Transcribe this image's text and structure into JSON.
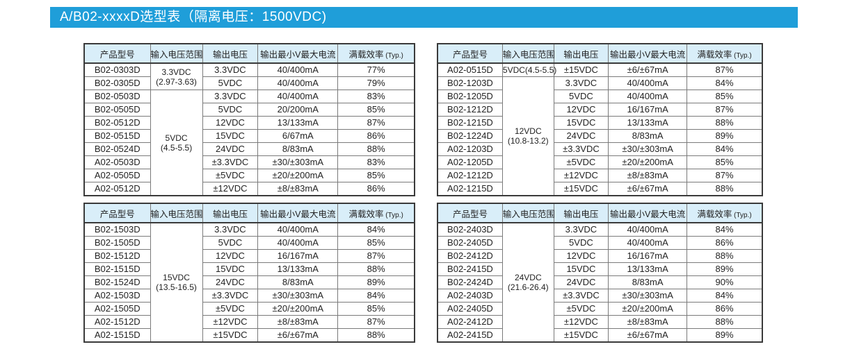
{
  "banner": {
    "title": "A/B02-xxxxD选型表（隔离电压：1500VDC)",
    "background": "#1f9ed9",
    "text_color": "#ffffff"
  },
  "colors": {
    "header_bg": "#d9eef9",
    "outer_border": "#3a3a3a",
    "inner_border": "#7a7a7a",
    "text": "#222222"
  },
  "column_headers": [
    {
      "label": "产品型号"
    },
    {
      "label": "输入电压范围"
    },
    {
      "label": "输出电压"
    },
    {
      "label": "输出最小V最大电流"
    },
    {
      "label": "满载效率",
      "small": "(Typ.)"
    }
  ],
  "tables": [
    {
      "position": "top-left",
      "rows": [
        {
          "model": "B02-0303D",
          "input": {
            "rowspan": 2,
            "lines": [
              "3.3VDC",
              "(2.97-3.63)"
            ]
          },
          "output": "3.3VDC",
          "current": "40/400mA",
          "efficiency": "77%"
        },
        {
          "model": "B02-0305D",
          "input": null,
          "output": "5VDC",
          "current": "40/400mA",
          "efficiency": "79%"
        },
        {
          "model": "B02-0503D",
          "input": {
            "rowspan": 8,
            "lines": [
              "5VDC",
              "(4.5-5.5)"
            ]
          },
          "output": "3.3VDC",
          "current": "40/400mA",
          "efficiency": "83%"
        },
        {
          "model": "B02-0505D",
          "input": null,
          "output": "5VDC",
          "current": "20/200mA",
          "efficiency": "85%"
        },
        {
          "model": "B02-0512D",
          "input": null,
          "output": "12VDC",
          "current": "13/133mA",
          "efficiency": "87%"
        },
        {
          "model": "B02-0515D",
          "input": null,
          "output": "15VDC",
          "current": "6/67mA",
          "efficiency": "86%"
        },
        {
          "model": "B02-0524D",
          "input": null,
          "output": "24VDC",
          "current": "8/83mA",
          "efficiency": "88%"
        },
        {
          "model": "A02-0503D",
          "input": null,
          "output": "±3.3VDC",
          "current": "±30/±303mA",
          "efficiency": "83%"
        },
        {
          "model": "A02-0505D",
          "input": null,
          "output": "±5VDC",
          "current": "±20/±200mA",
          "efficiency": "85%"
        },
        {
          "model": "A02-0512D",
          "input": null,
          "output": "±12VDC",
          "current": "±8/±83mA",
          "efficiency": "86%"
        }
      ]
    },
    {
      "position": "top-right",
      "rows": [
        {
          "model": "A02-0515D",
          "input": {
            "rowspan": 1,
            "lines": [
              "5VDC(4.5-5.5)"
            ]
          },
          "output": "±15VDC",
          "current": "±6/±67mA",
          "efficiency": "87%"
        },
        {
          "model": "B02-1203D",
          "input": {
            "rowspan": 9,
            "lines": [
              "12VDC",
              "(10.8-13.2)"
            ]
          },
          "output": "3.3VDC",
          "current": "40/400mA",
          "efficiency": "84%"
        },
        {
          "model": "B02-1205D",
          "input": null,
          "output": "5VDC",
          "current": "40/400mA",
          "efficiency": "85%"
        },
        {
          "model": "B02-1212D",
          "input": null,
          "output": "12VDC",
          "current": "16/167mA",
          "efficiency": "87%"
        },
        {
          "model": "B02-1215D",
          "input": null,
          "output": "15VDC",
          "current": "13/133mA",
          "efficiency": "88%"
        },
        {
          "model": "B02-1224D",
          "input": null,
          "output": "24VDC",
          "current": "8/83mA",
          "efficiency": "89%"
        },
        {
          "model": "A02-1203D",
          "input": null,
          "output": "±3.3VDC",
          "current": "±30/±303mA",
          "efficiency": "84%"
        },
        {
          "model": "A02-1205D",
          "input": null,
          "output": "±5VDC",
          "current": "±20/±200mA",
          "efficiency": "85%"
        },
        {
          "model": "A02-1212D",
          "input": null,
          "output": "±12VDC",
          "current": "±8/±83mA",
          "efficiency": "87%"
        },
        {
          "model": "A02-1215D",
          "input": null,
          "output": "±15VDC",
          "current": "±6/±67mA",
          "efficiency": "88%"
        }
      ]
    },
    {
      "position": "bottom-left",
      "rows": [
        {
          "model": "B02-1503D",
          "input": {
            "rowspan": 9,
            "lines": [
              "15VDC",
              "(13.5-16.5)"
            ]
          },
          "output": "3.3VDC",
          "current": "40/400mA",
          "efficiency": "84%"
        },
        {
          "model": "B02-1505D",
          "input": null,
          "output": "5VDC",
          "current": "40/400mA",
          "efficiency": "85%"
        },
        {
          "model": "B02-1512D",
          "input": null,
          "output": "12VDC",
          "current": "16/167mA",
          "efficiency": "87%"
        },
        {
          "model": "B02-1515D",
          "input": null,
          "output": "15VDC",
          "current": "13/133mA",
          "efficiency": "88%"
        },
        {
          "model": "B02-1524D",
          "input": null,
          "output": "24VDC",
          "current": "8/83mA",
          "efficiency": "89%"
        },
        {
          "model": "A02-1503D",
          "input": null,
          "output": "±3.3VDC",
          "current": "±30/±303mA",
          "efficiency": "84%"
        },
        {
          "model": "A02-1505D",
          "input": null,
          "output": "±5VDC",
          "current": "±20/±200mA",
          "efficiency": "85%"
        },
        {
          "model": "A02-1512D",
          "input": null,
          "output": "±12VDC",
          "current": "±8/±83mA",
          "efficiency": "87%"
        },
        {
          "model": "A02-1515D",
          "input": null,
          "output": "±15VDC",
          "current": "±6/±67mA",
          "efficiency": "88%"
        }
      ]
    },
    {
      "position": "bottom-right",
      "rows": [
        {
          "model": "B02-2403D",
          "input": {
            "rowspan": 9,
            "lines": [
              "24VDC",
              "(21.6-26.4)"
            ]
          },
          "output": "3.3VDC",
          "current": "40/400mA",
          "efficiency": "84%"
        },
        {
          "model": "B02-2405D",
          "input": null,
          "output": "5VDC",
          "current": "40/400mA",
          "efficiency": "86%"
        },
        {
          "model": "B02-2412D",
          "input": null,
          "output": "12VDC",
          "current": "16/167mA",
          "efficiency": "88%"
        },
        {
          "model": "B02-2415D",
          "input": null,
          "output": "15VDC",
          "current": "13/133mA",
          "efficiency": "89%"
        },
        {
          "model": "B02-2424D",
          "input": null,
          "output": "24VDC",
          "current": "8/83mA",
          "efficiency": "90%"
        },
        {
          "model": "A02-2403D",
          "input": null,
          "output": "±3.3VDC",
          "current": "±30/±303mA",
          "efficiency": "84%"
        },
        {
          "model": "A02-2405D",
          "input": null,
          "output": "±5VDC",
          "current": "±20/±200mA",
          "efficiency": "86%"
        },
        {
          "model": "A02-2412D",
          "input": null,
          "output": "±12VDC",
          "current": "±8/±83mA",
          "efficiency": "88%"
        },
        {
          "model": "A02-2415D",
          "input": null,
          "output": "±15VDC",
          "current": "±6/±67mA",
          "efficiency": "89%"
        }
      ]
    }
  ]
}
